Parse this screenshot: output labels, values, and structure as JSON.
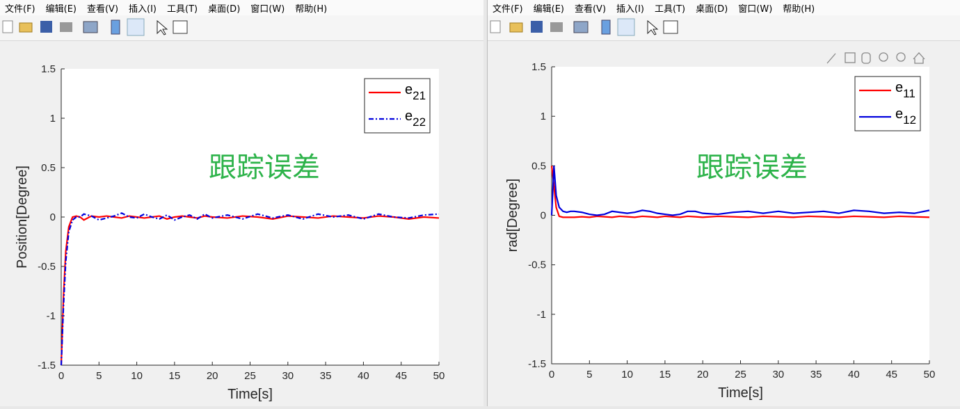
{
  "windows": [
    {
      "menu": [
        "文件(F)",
        "编辑(E)",
        "查看(V)",
        "插入(I)",
        "工具(T)",
        "桌面(D)",
        "窗口(W)",
        "帮助(H)"
      ]
    },
    {
      "menu": [
        "文件(F)",
        "编辑(E)",
        "查看(V)",
        "插入(I)",
        "工具(T)",
        "桌面(D)",
        "窗口(W)",
        "帮助(H)"
      ]
    }
  ],
  "chart_data": [
    {
      "type": "line",
      "annotation": "跟踪误差",
      "xlabel": "Time[s]",
      "ylabel": "Position[Degree]",
      "x": [
        0,
        0.3,
        0.6,
        1,
        1.5,
        2,
        2.5,
        3,
        4,
        5,
        6,
        7,
        8,
        9,
        10,
        11,
        12,
        13,
        14,
        15,
        16,
        17,
        18,
        19,
        20,
        22,
        24,
        26,
        28,
        30,
        32,
        34,
        36,
        38,
        40,
        42,
        44,
        46,
        48,
        50
      ],
      "series": [
        {
          "name": "e21",
          "color": "#ff0000",
          "linestyle": "solid",
          "values": [
            -1.5,
            -0.8,
            -0.35,
            -0.1,
            0,
            0.01,
            0,
            -0.03,
            0.01,
            0,
            0.01,
            0,
            -0.01,
            0.01,
            0,
            -0.01,
            0,
            0.01,
            -0.02,
            0,
            0.01,
            0,
            -0.01,
            0.01,
            0,
            -0.01,
            0.01,
            0,
            -0.02,
            0.01,
            0,
            -0.01,
            0.01,
            0,
            -0.01,
            0.01,
            0,
            -0.02,
            0,
            -0.01
          ]
        },
        {
          "name": "e22",
          "color": "#0000dd",
          "linestyle": "dashdot",
          "values": [
            -1.5,
            -0.9,
            -0.45,
            -0.15,
            -0.03,
            0,
            0,
            0.03,
            0.01,
            -0.03,
            -0.01,
            0.01,
            0.04,
            0,
            -0.01,
            0.03,
            0,
            -0.02,
            0.02,
            -0.03,
            0,
            0.02,
            -0.02,
            0.03,
            -0.01,
            0.02,
            -0.02,
            0.03,
            -0.01,
            0.02,
            -0.02,
            0.03,
            0,
            0.02,
            -0.02,
            0.03,
            0,
            -0.01,
            0.02,
            0.03
          ]
        }
      ],
      "xlim": [
        0,
        50
      ],
      "xticks": [
        0,
        5,
        10,
        15,
        20,
        25,
        30,
        35,
        40,
        45,
        50
      ],
      "ylim": [
        -1.5,
        1.5
      ],
      "yticks": [
        -1.5,
        -1,
        -0.5,
        0,
        0.5,
        1,
        1.5
      ],
      "legend": "upper right"
    },
    {
      "type": "line",
      "annotation": "跟踪误差",
      "xlabel": "Time[s]",
      "ylabel": "rad[Degree]",
      "x": [
        0,
        0.3,
        0.6,
        1,
        1.5,
        2,
        2.5,
        3,
        4,
        5,
        6,
        7,
        8,
        9,
        10,
        11,
        12,
        13,
        14,
        15,
        16,
        17,
        18,
        19,
        20,
        22,
        24,
        26,
        28,
        30,
        32,
        34,
        36,
        38,
        40,
        42,
        44,
        46,
        48,
        50
      ],
      "series": [
        {
          "name": "e11",
          "color": "#ff0000",
          "linestyle": "solid",
          "values": [
            0.5,
            0.3,
            0.08,
            -0.01,
            -0.02,
            -0.02,
            -0.02,
            -0.02,
            -0.015,
            -0.02,
            -0.01,
            -0.015,
            -0.02,
            -0.01,
            -0.015,
            -0.02,
            -0.01,
            -0.015,
            -0.02,
            -0.01,
            -0.015,
            -0.02,
            -0.01,
            -0.015,
            -0.02,
            -0.01,
            -0.015,
            -0.02,
            -0.01,
            -0.015,
            -0.02,
            -0.01,
            -0.015,
            -0.02,
            -0.01,
            -0.015,
            -0.02,
            -0.01,
            -0.015,
            -0.02
          ]
        },
        {
          "name": "e12",
          "color": "#0000dd",
          "linestyle": "solid",
          "values": [
            0,
            0.5,
            0.2,
            0.08,
            0.04,
            0.03,
            0.04,
            0.04,
            0.03,
            0.01,
            0,
            0.01,
            0.04,
            0.03,
            0.02,
            0.03,
            0.05,
            0.04,
            0.02,
            0.01,
            0,
            0.01,
            0.04,
            0.04,
            0.02,
            0.01,
            0.03,
            0.04,
            0.02,
            0.04,
            0.02,
            0.03,
            0.04,
            0.02,
            0.05,
            0.04,
            0.02,
            0.03,
            0.02,
            0.05
          ]
        }
      ],
      "xlim": [
        0,
        50
      ],
      "xticks": [
        0,
        5,
        10,
        15,
        20,
        25,
        30,
        35,
        40,
        45,
        50
      ],
      "ylim": [
        -1.5,
        1.5
      ],
      "yticks": [
        -1.5,
        -1,
        -0.5,
        0,
        0.5,
        1,
        1.5
      ],
      "legend": "upper right"
    }
  ]
}
